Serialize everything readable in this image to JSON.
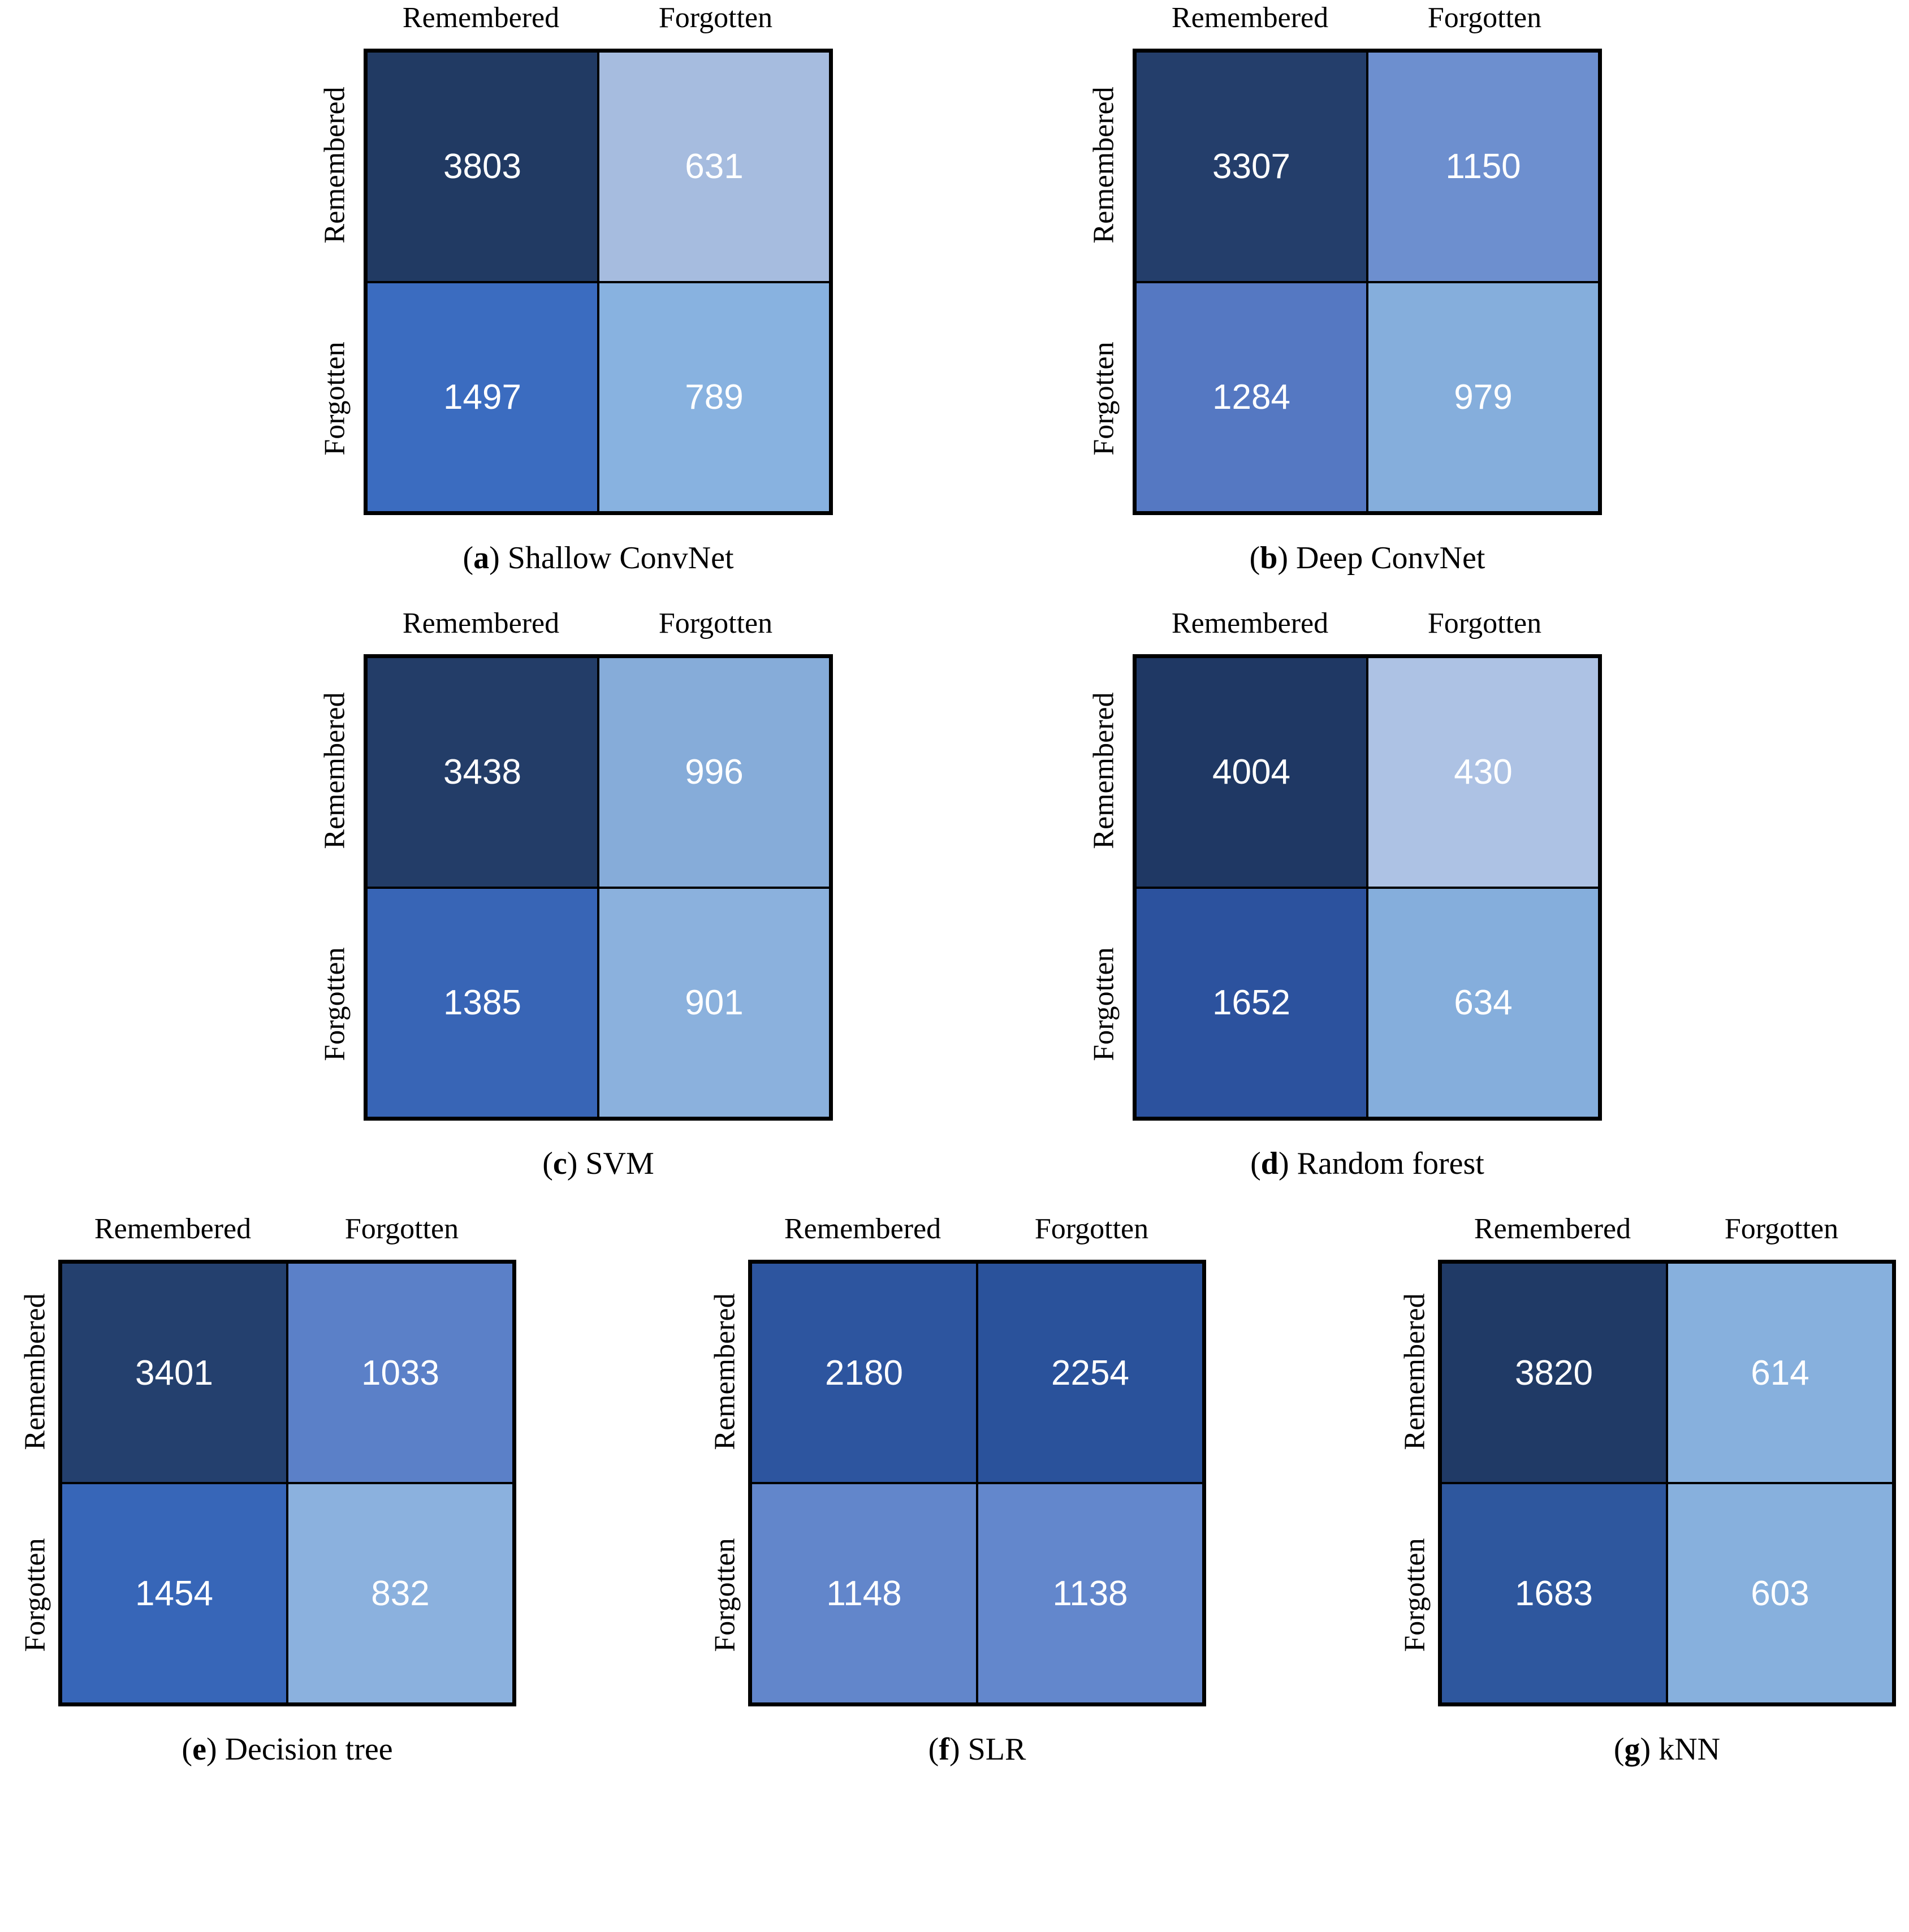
{
  "figure": {
    "background": "#ffffff",
    "label_color": "#000000",
    "value_text_color": "#ffffff",
    "border_color": "#000000"
  },
  "axis_labels": {
    "col": [
      "Remembered",
      "Forgotten"
    ],
    "row": [
      "Remembered",
      "Forgotten"
    ]
  },
  "matrices": [
    {
      "caption_letter": "a",
      "caption_name": "Shallow ConvNet",
      "cells": [
        {
          "value": "3803",
          "color": "#213a63"
        },
        {
          "value": "631",
          "color": "#a6bcdf"
        },
        {
          "value": "1497",
          "color": "#3b6cc0"
        },
        {
          "value": "789",
          "color": "#88b2e0"
        }
      ]
    },
    {
      "caption_letter": "b",
      "caption_name": "Deep ConvNet",
      "cells": [
        {
          "value": "3307",
          "color": "#243e6b"
        },
        {
          "value": "1150",
          "color": "#6d8fcf"
        },
        {
          "value": "1284",
          "color": "#5578c2"
        },
        {
          "value": "979",
          "color": "#85aedc"
        }
      ]
    },
    {
      "caption_letter": "c",
      "caption_name": "SVM",
      "cells": [
        {
          "value": "3438",
          "color": "#233d68"
        },
        {
          "value": "996",
          "color": "#86acd9"
        },
        {
          "value": "1385",
          "color": "#3865b6"
        },
        {
          "value": "901",
          "color": "#8bb1dd"
        }
      ]
    },
    {
      "caption_letter": "d",
      "caption_name": "Random forest",
      "cells": [
        {
          "value": "4004",
          "color": "#1f3864"
        },
        {
          "value": "430",
          "color": "#adc2e4"
        },
        {
          "value": "1652",
          "color": "#2c529e"
        },
        {
          "value": "634",
          "color": "#85aedc"
        }
      ]
    },
    {
      "caption_letter": "e",
      "caption_name": "Decision tree",
      "cells": [
        {
          "value": "3401",
          "color": "#24406e"
        },
        {
          "value": "1033",
          "color": "#5b80c8"
        },
        {
          "value": "1454",
          "color": "#3766b8"
        },
        {
          "value": "832",
          "color": "#8bb1de"
        }
      ]
    },
    {
      "caption_letter": "f",
      "caption_name": "SLR",
      "cells": [
        {
          "value": "2180",
          "color": "#2d559f"
        },
        {
          "value": "2254",
          "color": "#2a529b"
        },
        {
          "value": "1148",
          "color": "#6286cb"
        },
        {
          "value": "1138",
          "color": "#6387cc"
        }
      ]
    },
    {
      "caption_letter": "g",
      "caption_name": "kNN",
      "cells": [
        {
          "value": "3820",
          "color": "#203a66"
        },
        {
          "value": "614",
          "color": "#87b0dd"
        },
        {
          "value": "1683",
          "color": "#2e579e"
        },
        {
          "value": "603",
          "color": "#87b0dd"
        }
      ]
    }
  ],
  "chart_data": [
    {
      "type": "heatmap",
      "title": "(a) Shallow ConvNet",
      "x_labels": [
        "Remembered",
        "Forgotten"
      ],
      "y_labels": [
        "Remembered",
        "Forgotten"
      ],
      "values": [
        [
          3803,
          631
        ],
        [
          1497,
          789
        ]
      ]
    },
    {
      "type": "heatmap",
      "title": "(b) Deep ConvNet",
      "x_labels": [
        "Remembered",
        "Forgotten"
      ],
      "y_labels": [
        "Remembered",
        "Forgotten"
      ],
      "values": [
        [
          3307,
          1150
        ],
        [
          1284,
          979
        ]
      ]
    },
    {
      "type": "heatmap",
      "title": "(c) SVM",
      "x_labels": [
        "Remembered",
        "Forgotten"
      ],
      "y_labels": [
        "Remembered",
        "Forgotten"
      ],
      "values": [
        [
          3438,
          996
        ],
        [
          1385,
          901
        ]
      ]
    },
    {
      "type": "heatmap",
      "title": "(d) Random forest",
      "x_labels": [
        "Remembered",
        "Forgotten"
      ],
      "y_labels": [
        "Remembered",
        "Forgotten"
      ],
      "values": [
        [
          4004,
          430
        ],
        [
          1652,
          634
        ]
      ]
    },
    {
      "type": "heatmap",
      "title": "(e) Decision tree",
      "x_labels": [
        "Remembered",
        "Forgotten"
      ],
      "y_labels": [
        "Remembered",
        "Forgotten"
      ],
      "values": [
        [
          3401,
          1033
        ],
        [
          1454,
          832
        ]
      ]
    },
    {
      "type": "heatmap",
      "title": "(f) SLR",
      "x_labels": [
        "Remembered",
        "Forgotten"
      ],
      "y_labels": [
        "Remembered",
        "Forgotten"
      ],
      "values": [
        [
          2180,
          2254
        ],
        [
          1148,
          1138
        ]
      ]
    },
    {
      "type": "heatmap",
      "title": "(g) kNN",
      "x_labels": [
        "Remembered",
        "Forgotten"
      ],
      "y_labels": [
        "Remembered",
        "Forgotten"
      ],
      "values": [
        [
          3820,
          614
        ],
        [
          1683,
          603
        ]
      ]
    }
  ]
}
